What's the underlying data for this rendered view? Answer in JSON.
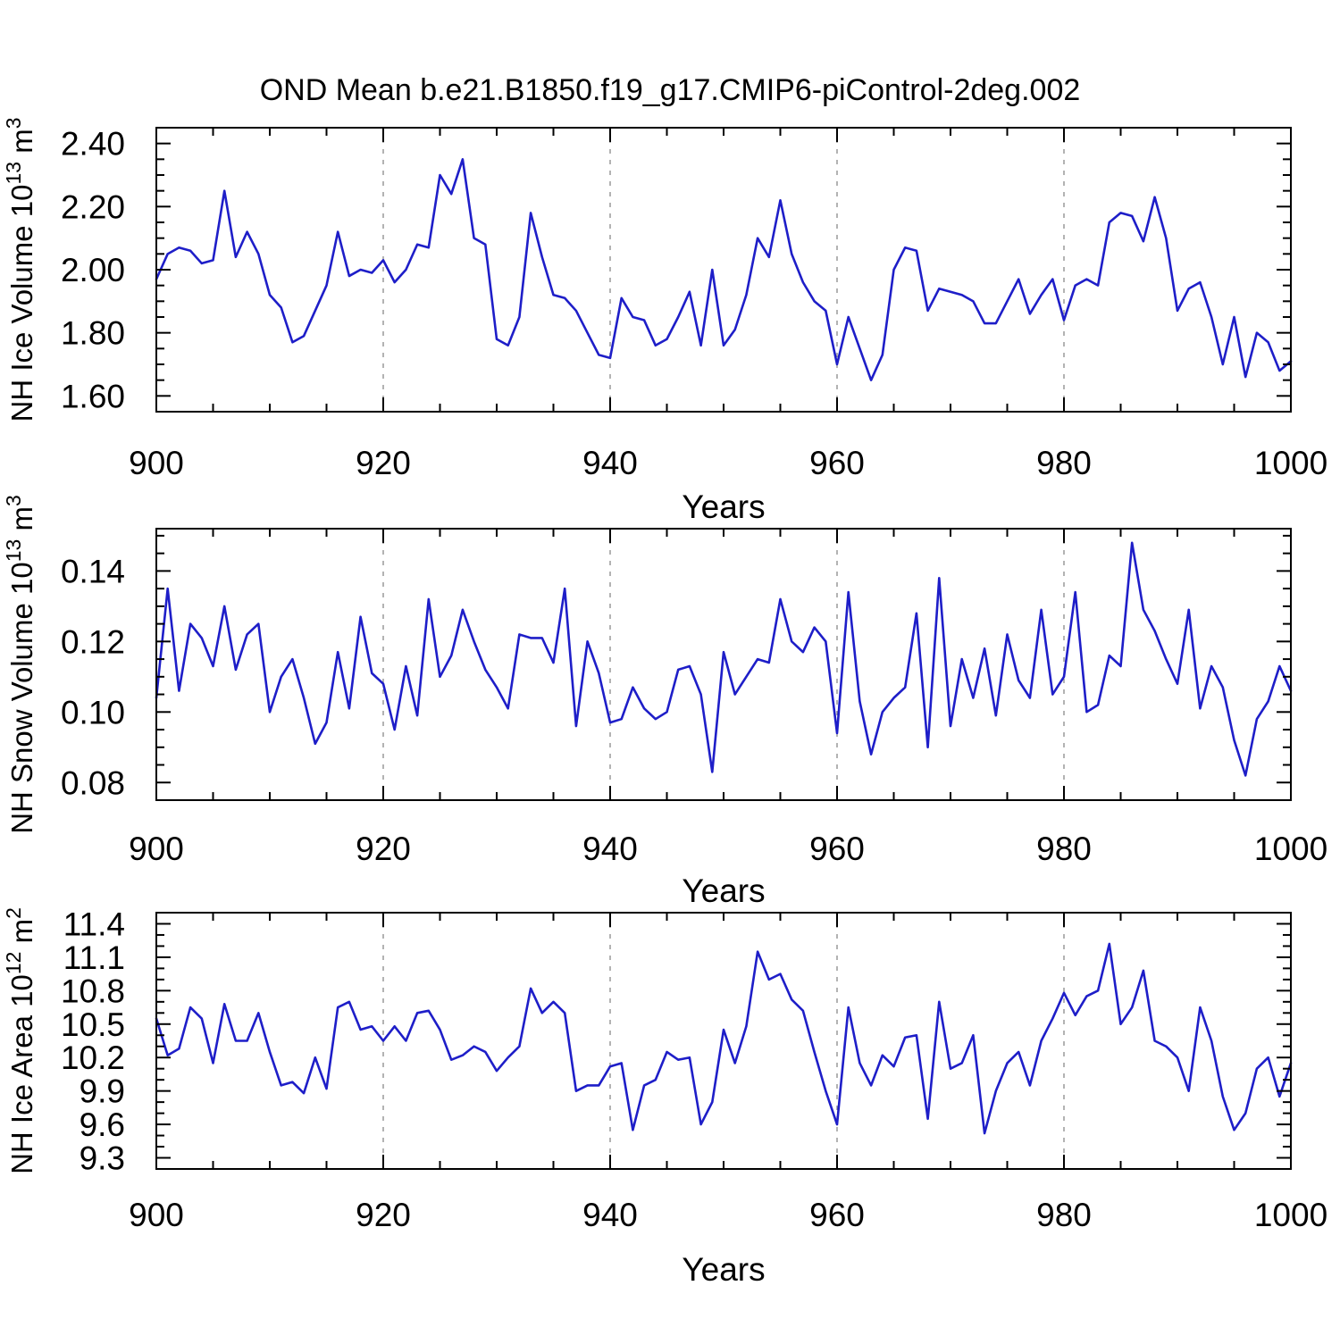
{
  "title": "OND Mean b.e21.B1850.f19_g17.CMIP6-piControl-2deg.002",
  "line_color": "#1e1ec8",
  "grid_color": "#808080",
  "frame_color": "#000000",
  "chart_data": [
    {
      "type": "line",
      "xlabel": "Years",
      "ylabel_parts": [
        {
          "t": "NH Ice Volume 10"
        },
        {
          "t": "13",
          "sup": true
        },
        {
          "t": " m"
        },
        {
          "t": "3",
          "sup": true
        }
      ],
      "xlim": [
        900,
        1000
      ],
      "xticks": [
        900,
        920,
        940,
        960,
        980,
        1000
      ],
      "xtick_labels": [
        "900",
        "920",
        "940",
        "960",
        "980",
        "1000"
      ],
      "x_minor_step": 5,
      "grid_x": [
        920,
        940,
        960,
        980
      ],
      "ylim": [
        1.55,
        2.45
      ],
      "yticks": [
        1.6,
        1.8,
        2.0,
        2.2,
        2.4
      ],
      "ytick_labels": [
        "1.60",
        "1.80",
        "2.00",
        "2.20",
        "2.40"
      ],
      "y_minor_step": 0.05,
      "x_start": 900,
      "x_step": 1,
      "values": [
        1.97,
        2.05,
        2.07,
        2.06,
        2.02,
        2.03,
        2.25,
        2.04,
        2.12,
        2.05,
        1.92,
        1.88,
        1.77,
        1.79,
        1.87,
        1.95,
        2.12,
        1.98,
        2.0,
        1.99,
        2.03,
        1.96,
        2.0,
        2.08,
        2.07,
        2.3,
        2.24,
        2.35,
        2.1,
        2.08,
        1.78,
        1.76,
        1.85,
        2.18,
        2.04,
        1.92,
        1.91,
        1.87,
        1.8,
        1.73,
        1.72,
        1.91,
        1.85,
        1.84,
        1.76,
        1.78,
        1.85,
        1.93,
        1.76,
        2.0,
        1.76,
        1.81,
        1.92,
        2.1,
        2.04,
        2.22,
        2.05,
        1.96,
        1.9,
        1.87,
        1.7,
        1.85,
        1.75,
        1.65,
        1.73,
        2.0,
        2.07,
        2.06,
        1.87,
        1.94,
        1.93,
        1.92,
        1.9,
        1.83,
        1.83,
        1.9,
        1.97,
        1.86,
        1.92,
        1.97,
        1.84,
        1.95,
        1.97,
        1.95,
        2.15,
        2.18,
        2.17,
        2.09,
        2.23,
        2.1,
        1.87,
        1.94,
        1.96,
        1.85,
        1.7,
        1.85,
        1.66,
        1.8,
        1.77,
        1.68,
        1.71
      ]
    },
    {
      "type": "line",
      "xlabel": "Years",
      "ylabel_parts": [
        {
          "t": "NH Snow Volume 10"
        },
        {
          "t": "13",
          "sup": true
        },
        {
          "t": " m"
        },
        {
          "t": "3",
          "sup": true
        }
      ],
      "xlim": [
        900,
        1000
      ],
      "xticks": [
        900,
        920,
        940,
        960,
        980,
        1000
      ],
      "xtick_labels": [
        "900",
        "920",
        "940",
        "960",
        "980",
        "1000"
      ],
      "x_minor_step": 5,
      "grid_x": [
        920,
        940,
        960,
        980
      ],
      "ylim": [
        0.075,
        0.152
      ],
      "yticks": [
        0.08,
        0.1,
        0.12,
        0.14
      ],
      "ytick_labels": [
        "0.08",
        "0.10",
        "0.12",
        "0.14"
      ],
      "y_minor_step": 0.005,
      "x_start": 900,
      "x_step": 1,
      "values": [
        0.104,
        0.135,
        0.106,
        0.125,
        0.121,
        0.113,
        0.13,
        0.112,
        0.122,
        0.125,
        0.1,
        0.11,
        0.115,
        0.104,
        0.091,
        0.097,
        0.117,
        0.101,
        0.127,
        0.111,
        0.108,
        0.095,
        0.113,
        0.099,
        0.132,
        0.11,
        0.116,
        0.129,
        0.12,
        0.112,
        0.107,
        0.101,
        0.122,
        0.121,
        0.121,
        0.114,
        0.135,
        0.096,
        0.12,
        0.111,
        0.097,
        0.098,
        0.107,
        0.101,
        0.098,
        0.1,
        0.112,
        0.113,
        0.105,
        0.083,
        0.117,
        0.105,
        0.11,
        0.115,
        0.114,
        0.132,
        0.12,
        0.117,
        0.124,
        0.12,
        0.094,
        0.134,
        0.103,
        0.088,
        0.1,
        0.104,
        0.107,
        0.128,
        0.09,
        0.138,
        0.096,
        0.115,
        0.104,
        0.118,
        0.099,
        0.122,
        0.109,
        0.104,
        0.129,
        0.105,
        0.11,
        0.134,
        0.1,
        0.102,
        0.116,
        0.113,
        0.148,
        0.129,
        0.123,
        0.115,
        0.108,
        0.129,
        0.101,
        0.113,
        0.107,
        0.092,
        0.082,
        0.098,
        0.103,
        0.113,
        0.106
      ]
    },
    {
      "type": "line",
      "xlabel": "Years",
      "ylabel_parts": [
        {
          "t": "NH Ice Area 10"
        },
        {
          "t": "12",
          "sup": true
        },
        {
          "t": " m"
        },
        {
          "t": "2",
          "sup": true
        }
      ],
      "xlim": [
        900,
        1000
      ],
      "xticks": [
        900,
        920,
        940,
        960,
        980,
        1000
      ],
      "xtick_labels": [
        "900",
        "920",
        "940",
        "960",
        "980",
        "1000"
      ],
      "x_minor_step": 5,
      "grid_x": [
        920,
        940,
        960,
        980
      ],
      "ylim": [
        9.2,
        11.5
      ],
      "yticks": [
        9.3,
        9.6,
        9.9,
        10.2,
        10.5,
        10.8,
        11.1,
        11.4
      ],
      "ytick_labels": [
        "9.3",
        "9.6",
        "9.9",
        "10.2",
        "10.5",
        "10.8",
        "11.1",
        "11.4"
      ],
      "y_minor_step": 0.1,
      "x_start": 900,
      "x_step": 1,
      "values": [
        10.55,
        10.22,
        10.28,
        10.65,
        10.55,
        10.15,
        10.68,
        10.35,
        10.35,
        10.6,
        10.25,
        9.95,
        9.98,
        9.88,
        10.2,
        9.92,
        10.65,
        10.7,
        10.45,
        10.48,
        10.35,
        10.48,
        10.35,
        10.6,
        10.62,
        10.45,
        10.18,
        10.22,
        10.3,
        10.25,
        10.08,
        10.2,
        10.3,
        10.82,
        10.6,
        10.7,
        10.6,
        9.9,
        9.95,
        9.95,
        10.12,
        10.15,
        9.55,
        9.95,
        10.0,
        10.25,
        10.18,
        10.2,
        9.6,
        9.8,
        10.45,
        10.15,
        10.48,
        11.15,
        10.9,
        10.95,
        10.72,
        10.62,
        10.25,
        9.9,
        9.6,
        10.65,
        10.15,
        9.95,
        10.22,
        10.12,
        10.38,
        10.4,
        9.65,
        10.7,
        10.1,
        10.15,
        10.4,
        9.52,
        9.9,
        10.15,
        10.25,
        9.95,
        10.35,
        10.55,
        10.78,
        10.58,
        10.75,
        10.8,
        11.22,
        10.5,
        10.65,
        10.98,
        10.35,
        10.3,
        10.2,
        9.9,
        10.65,
        10.35,
        9.85,
        9.55,
        9.7,
        10.1,
        10.2,
        9.85,
        10.15
      ]
    }
  ]
}
